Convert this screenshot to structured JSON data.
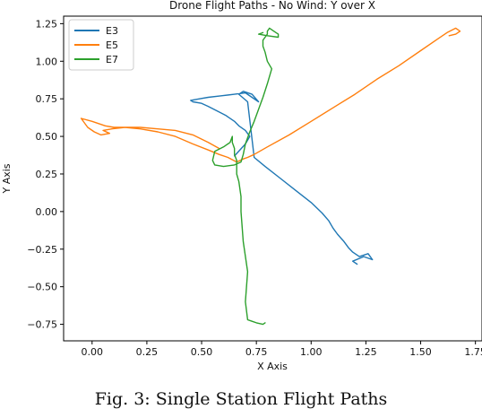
{
  "chart_data": {
    "type": "line",
    "title": "Drone Flight Paths - No Wind: Y over X",
    "xlabel": "X Axis",
    "ylabel": "Y Axis",
    "xlim": [
      -0.13,
      1.78
    ],
    "ylim": [
      -0.86,
      1.3
    ],
    "xticks": [
      0.0,
      0.25,
      0.5,
      0.75,
      1.0,
      1.25,
      1.5,
      1.75
    ],
    "xtick_labels": [
      "0.00",
      "0.25",
      "0.50",
      "0.75",
      "1.00",
      "1.25",
      "1.50",
      "1.75"
    ],
    "yticks": [
      -0.75,
      -0.5,
      -0.25,
      0.0,
      0.25,
      0.5,
      0.75,
      1.0,
      1.25
    ],
    "ytick_labels": [
      "−0.75",
      "−0.50",
      "−0.25",
      "0.00",
      "0.25",
      "0.50",
      "0.75",
      "1.00",
      "1.25"
    ],
    "grid": false,
    "legend_position": "top-left",
    "series": [
      {
        "name": "E3",
        "color": "#1f77b4",
        "x": [
          0.65,
          0.7,
          0.72,
          0.7,
          0.67,
          0.65,
          0.61,
          0.57,
          0.53,
          0.5,
          0.46,
          0.45,
          0.49,
          0.53,
          0.59,
          0.65,
          0.7,
          0.76,
          0.73,
          0.69,
          0.67,
          0.71,
          0.74,
          0.79,
          0.86,
          0.93,
          1.0,
          1.05,
          1.08,
          1.1,
          1.12,
          1.15,
          1.17,
          1.19,
          1.22,
          1.26,
          1.28,
          1.24,
          1.19,
          1.21
        ],
        "y": [
          0.37,
          0.45,
          0.5,
          0.54,
          0.57,
          0.6,
          0.64,
          0.67,
          0.7,
          0.72,
          0.73,
          0.74,
          0.75,
          0.76,
          0.77,
          0.78,
          0.79,
          0.73,
          0.78,
          0.8,
          0.78,
          0.73,
          0.36,
          0.3,
          0.22,
          0.14,
          0.06,
          -0.01,
          -0.06,
          -0.11,
          -0.15,
          -0.2,
          -0.24,
          -0.27,
          -0.3,
          -0.28,
          -0.32,
          -0.3,
          -0.33,
          -0.35
        ]
      },
      {
        "name": "E5",
        "color": "#ff7f0e",
        "x": [
          0.58,
          0.53,
          0.46,
          0.38,
          0.3,
          0.22,
          0.15,
          0.09,
          0.05,
          0.08,
          0.04,
          0.01,
          -0.02,
          -0.05,
          0.0,
          0.06,
          0.1,
          0.15,
          0.22,
          0.3,
          0.38,
          0.46,
          0.53,
          0.58,
          0.62,
          0.66,
          0.69,
          0.71,
          0.74,
          0.8,
          0.9,
          1.0,
          1.1,
          1.2,
          1.3,
          1.4,
          1.5,
          1.58,
          1.62,
          1.66,
          1.68,
          1.66,
          1.63
        ],
        "y": [
          0.42,
          0.46,
          0.51,
          0.54,
          0.55,
          0.56,
          0.56,
          0.55,
          0.54,
          0.52,
          0.51,
          0.53,
          0.56,
          0.62,
          0.6,
          0.57,
          0.56,
          0.56,
          0.55,
          0.53,
          0.5,
          0.45,
          0.41,
          0.38,
          0.36,
          0.33,
          0.35,
          0.36,
          0.38,
          0.43,
          0.51,
          0.6,
          0.69,
          0.78,
          0.88,
          0.97,
          1.07,
          1.15,
          1.19,
          1.22,
          1.2,
          1.18,
          1.17
        ]
      },
      {
        "name": "E7",
        "color": "#2ca02c",
        "x": [
          0.79,
          0.78,
          0.75,
          0.73,
          0.71,
          0.7,
          0.71,
          0.69,
          0.68,
          0.68,
          0.67,
          0.66,
          0.66,
          0.66,
          0.65,
          0.65,
          0.64,
          0.64,
          0.63,
          0.6,
          0.56,
          0.55,
          0.56,
          0.6,
          0.65,
          0.68,
          0.69,
          0.7,
          0.72,
          0.74,
          0.76,
          0.78,
          0.8,
          0.82,
          0.8,
          0.79,
          0.78,
          0.78,
          0.79,
          0.8,
          0.8,
          0.81,
          0.83,
          0.85,
          0.85,
          0.8,
          0.76,
          0.78
        ],
        "y": [
          -0.74,
          -0.75,
          -0.74,
          -0.73,
          -0.72,
          -0.6,
          -0.4,
          -0.2,
          0.0,
          0.1,
          0.2,
          0.25,
          0.3,
          0.34,
          0.38,
          0.42,
          0.46,
          0.5,
          0.46,
          0.43,
          0.4,
          0.34,
          0.31,
          0.3,
          0.31,
          0.33,
          0.38,
          0.45,
          0.53,
          0.6,
          0.68,
          0.76,
          0.85,
          0.95,
          1.0,
          1.06,
          1.1,
          1.14,
          1.16,
          1.18,
          1.2,
          1.22,
          1.2,
          1.18,
          1.16,
          1.17,
          1.18,
          1.19
        ]
      }
    ]
  },
  "caption": "Fig. 3: Single Station Flight Paths"
}
